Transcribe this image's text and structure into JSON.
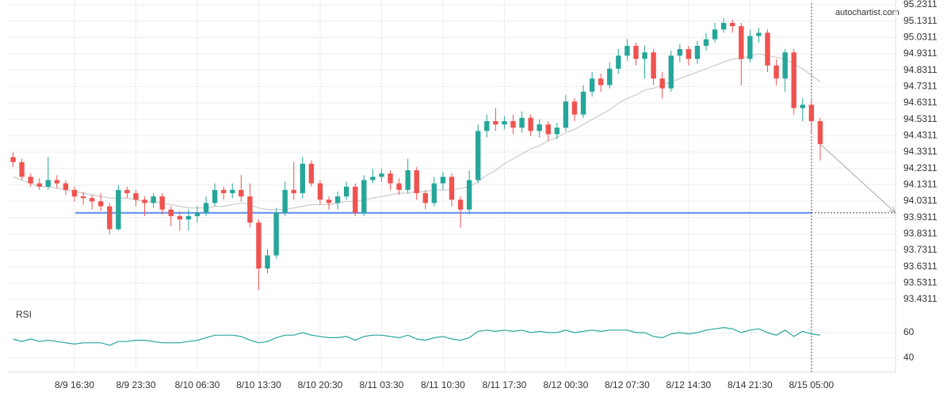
{
  "chart_data": {
    "type": "candlestick",
    "watermark": "autochartist.com",
    "rsi_label": "RSI",
    "up_color": "#26a69a",
    "down_color": "#ef5350",
    "ma_color": "#cccccc",
    "rsi_color": "#26a69a",
    "support_color": "#5b8def",
    "support": 93.96,
    "ylim": [
      93.3975,
      95.26
    ],
    "yticks": [
      95.2311,
      95.1311,
      95.0311,
      94.9311,
      94.8311,
      94.7311,
      94.6311,
      94.5311,
      94.4311,
      94.3311,
      94.2311,
      94.1311,
      94.0311,
      93.9311,
      93.8311,
      93.7311,
      93.6311,
      93.5311,
      93.4311
    ],
    "rsi_ylim": [
      28.75,
      81.875
    ],
    "rsi_yticks": [
      60,
      40
    ],
    "categories": [
      null,
      null,
      null,
      null,
      null,
      null,
      null,
      "8/9 16:30",
      null,
      null,
      null,
      null,
      null,
      null,
      "8/9 23:30",
      null,
      null,
      null,
      null,
      null,
      null,
      "8/10 06:30",
      null,
      null,
      null,
      null,
      null,
      null,
      "8/10 13:30",
      null,
      null,
      null,
      null,
      null,
      null,
      "8/10 20:30",
      null,
      null,
      null,
      null,
      null,
      null,
      "8/11 03:30",
      null,
      null,
      null,
      null,
      null,
      null,
      "8/11 10:30",
      null,
      null,
      null,
      null,
      null,
      null,
      "8/11 17:30",
      null,
      null,
      null,
      null,
      null,
      null,
      "8/12 00:30",
      null,
      null,
      null,
      null,
      null,
      null,
      "8/12 07:30",
      null,
      null,
      null,
      null,
      null,
      null,
      "8/12 14:30",
      null,
      null,
      null,
      null,
      null,
      null,
      "8/14 21:30",
      null,
      null,
      null,
      null,
      null,
      null,
      "8/15 05:00",
      null
    ],
    "candles": [
      [
        94.3,
        94.33,
        94.24,
        94.27
      ],
      [
        94.27,
        94.29,
        94.16,
        94.18
      ],
      [
        94.18,
        94.2,
        94.12,
        94.14
      ],
      [
        94.14,
        94.17,
        94.1,
        94.12
      ],
      [
        94.12,
        94.3,
        94.1,
        94.16
      ],
      [
        94.16,
        94.19,
        94.11,
        94.14
      ],
      [
        94.14,
        94.16,
        94.07,
        94.1
      ],
      [
        94.1,
        94.12,
        94.03,
        94.06
      ],
      [
        94.06,
        94.09,
        94.01,
        94.05
      ],
      [
        94.05,
        94.07,
        93.98,
        94.03
      ],
      [
        94.03,
        94.08,
        93.97,
        94.0
      ],
      [
        94.0,
        94.02,
        93.83,
        93.86
      ],
      [
        93.86,
        94.13,
        93.85,
        94.1
      ],
      [
        94.1,
        94.12,
        94.05,
        94.08
      ],
      [
        94.08,
        94.1,
        94.0,
        94.04
      ],
      [
        94.04,
        94.06,
        93.94,
        94.02
      ],
      [
        94.02,
        94.08,
        93.99,
        94.06
      ],
      [
        94.06,
        94.08,
        93.95,
        93.98
      ],
      [
        93.98,
        94.0,
        93.88,
        93.94
      ],
      [
        93.94,
        93.97,
        93.85,
        93.92
      ],
      [
        93.92,
        93.98,
        93.85,
        93.94
      ],
      [
        93.94,
        94.0,
        93.9,
        93.96
      ],
      [
        93.96,
        94.06,
        93.94,
        94.02
      ],
      [
        94.02,
        94.14,
        94.0,
        94.1
      ],
      [
        94.1,
        94.12,
        94.04,
        94.08
      ],
      [
        94.08,
        94.14,
        94.05,
        94.1
      ],
      [
        94.1,
        94.19,
        94.03,
        94.06
      ],
      [
        94.06,
        94.14,
        93.87,
        93.9
      ],
      [
        93.9,
        93.92,
        93.49,
        93.62
      ],
      [
        93.62,
        93.74,
        93.59,
        93.7
      ],
      [
        93.7,
        93.99,
        93.68,
        93.96
      ],
      [
        93.96,
        94.15,
        93.94,
        94.1
      ],
      [
        94.1,
        94.27,
        94.04,
        94.08
      ],
      [
        94.08,
        94.3,
        94.05,
        94.26
      ],
      [
        94.26,
        94.28,
        94.12,
        94.14
      ],
      [
        94.14,
        94.16,
        94.01,
        94.04
      ],
      [
        94.04,
        94.06,
        93.98,
        94.02
      ],
      [
        94.02,
        94.09,
        93.98,
        94.06
      ],
      [
        94.06,
        94.15,
        94.04,
        94.12
      ],
      [
        94.12,
        94.14,
        93.94,
        93.96
      ],
      [
        93.96,
        94.19,
        93.94,
        94.16
      ],
      [
        94.16,
        94.23,
        94.14,
        94.18
      ],
      [
        94.18,
        94.23,
        94.15,
        94.2
      ],
      [
        94.2,
        94.22,
        94.1,
        94.14
      ],
      [
        94.14,
        94.17,
        94.07,
        94.1
      ],
      [
        94.1,
        94.29,
        94.08,
        94.22
      ],
      [
        94.22,
        94.24,
        94.04,
        94.08
      ],
      [
        94.08,
        94.1,
        93.98,
        94.02
      ],
      [
        94.02,
        94.18,
        94.0,
        94.14
      ],
      [
        94.14,
        94.21,
        94.1,
        94.18
      ],
      [
        94.18,
        94.2,
        94.0,
        94.04
      ],
      [
        94.04,
        94.06,
        93.87,
        93.98
      ],
      [
        93.98,
        94.22,
        93.95,
        94.16
      ],
      [
        94.16,
        94.5,
        94.14,
        94.46
      ],
      [
        94.46,
        94.56,
        94.42,
        94.52
      ],
      [
        94.52,
        94.6,
        94.46,
        94.5
      ],
      [
        94.5,
        94.55,
        94.47,
        94.52
      ],
      [
        94.52,
        94.56,
        94.44,
        94.48
      ],
      [
        94.48,
        94.58,
        94.45,
        94.54
      ],
      [
        94.54,
        94.56,
        94.43,
        94.46
      ],
      [
        94.46,
        94.53,
        94.42,
        94.5
      ],
      [
        94.5,
        94.52,
        94.4,
        94.44
      ],
      [
        94.44,
        94.51,
        94.41,
        94.48
      ],
      [
        94.48,
        94.68,
        94.46,
        94.64
      ],
      [
        94.64,
        94.66,
        94.52,
        94.56
      ],
      [
        94.56,
        94.74,
        94.54,
        94.7
      ],
      [
        94.7,
        94.82,
        94.67,
        94.78
      ],
      [
        94.78,
        94.81,
        94.7,
        94.74
      ],
      [
        94.74,
        94.88,
        94.72,
        94.84
      ],
      [
        94.84,
        94.96,
        94.81,
        94.92
      ],
      [
        94.92,
        95.02,
        94.89,
        94.98
      ],
      [
        94.98,
        95.0,
        94.86,
        94.9
      ],
      [
        94.9,
        94.98,
        94.78,
        94.94
      ],
      [
        94.94,
        94.96,
        94.74,
        94.78
      ],
      [
        94.78,
        94.82,
        94.66,
        94.72
      ],
      [
        94.72,
        94.95,
        94.7,
        94.92
      ],
      [
        94.92,
        94.99,
        94.88,
        94.96
      ],
      [
        94.96,
        94.98,
        94.86,
        94.9
      ],
      [
        94.9,
        95.01,
        94.87,
        94.98
      ],
      [
        94.98,
        95.06,
        94.95,
        95.02
      ],
      [
        95.02,
        95.12,
        95.0,
        95.08
      ],
      [
        95.08,
        95.15,
        95.06,
        95.12
      ],
      [
        95.12,
        95.14,
        95.06,
        95.1
      ],
      [
        95.1,
        95.12,
        94.74,
        94.9
      ],
      [
        94.9,
        95.08,
        94.88,
        95.04
      ],
      [
        95.04,
        95.09,
        95.0,
        95.06
      ],
      [
        95.06,
        95.08,
        94.82,
        94.86
      ],
      [
        94.86,
        94.9,
        94.74,
        94.78
      ],
      [
        94.78,
        94.96,
        94.7,
        94.94
      ],
      [
        94.94,
        94.96,
        94.56,
        94.6
      ],
      [
        94.6,
        94.66,
        94.52,
        94.62
      ],
      [
        94.62,
        94.65,
        94.44,
        94.52
      ],
      [
        94.52,
        94.54,
        94.28,
        94.38
      ]
    ],
    "ma": [
      94.18,
      94.16,
      94.14,
      94.12,
      94.12,
      94.11,
      94.1,
      94.09,
      94.08,
      94.07,
      94.06,
      94.05,
      94.05,
      94.05,
      94.04,
      94.03,
      94.03,
      94.02,
      94.01,
      94.0,
      93.99,
      93.99,
      93.99,
      94.0,
      94.0,
      94.01,
      94.02,
      94.01,
      93.99,
      93.98,
      93.98,
      93.98,
      93.99,
      94.0,
      94.01,
      94.01,
      94.01,
      94.02,
      94.03,
      94.03,
      94.04,
      94.05,
      94.06,
      94.07,
      94.08,
      94.08,
      94.09,
      94.09,
      94.1,
      94.1,
      94.1,
      94.11,
      94.12,
      94.15,
      94.19,
      94.22,
      94.26,
      94.29,
      94.32,
      94.35,
      94.37,
      94.4,
      94.42,
      94.45,
      94.47,
      94.5,
      94.53,
      94.56,
      94.59,
      94.63,
      94.66,
      94.68,
      94.71,
      94.72,
      94.74,
      94.76,
      94.78,
      94.8,
      94.82,
      94.84,
      94.86,
      94.88,
      94.9,
      94.9,
      94.92,
      94.93,
      94.92,
      94.91,
      94.9,
      94.87,
      94.84,
      94.8,
      94.76
    ],
    "rsi": [
      55,
      53,
      55,
      53,
      54,
      53,
      52,
      51,
      52,
      52,
      52,
      50,
      53,
      53,
      54,
      54,
      53,
      52,
      52,
      52,
      53,
      54,
      56,
      58,
      58,
      58,
      57,
      54,
      52,
      53,
      56,
      58,
      58,
      60,
      58,
      57,
      56,
      56,
      57,
      54,
      57,
      58,
      58,
      57,
      56,
      58,
      55,
      54,
      56,
      57,
      55,
      54,
      56,
      61,
      62,
      61,
      62,
      61,
      62,
      60,
      61,
      60,
      60,
      62,
      60,
      61,
      62,
      61,
      62,
      62,
      62,
      60,
      60,
      57,
      56,
      59,
      60,
      59,
      60,
      62,
      63,
      64,
      63,
      60,
      62,
      63,
      60,
      58,
      62,
      57,
      61,
      59,
      58
    ]
  }
}
